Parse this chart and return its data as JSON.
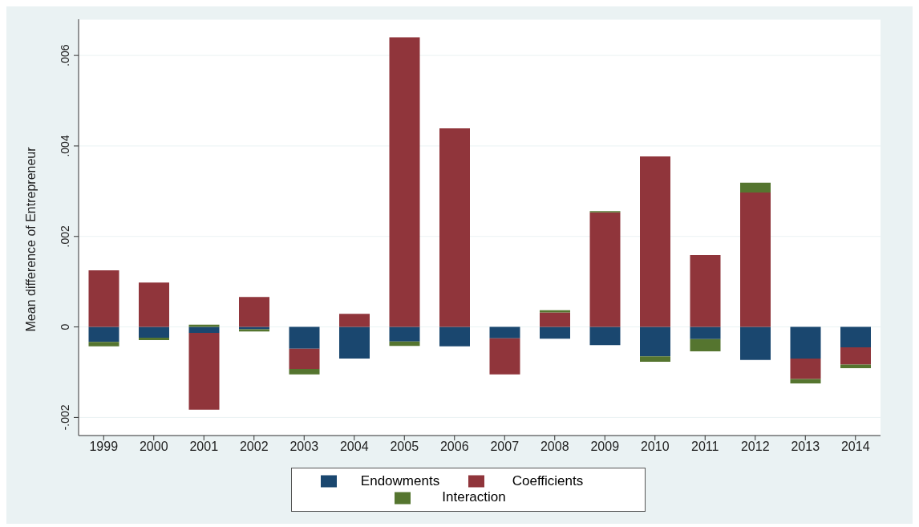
{
  "chart_data": {
    "type": "bar",
    "stacked": true,
    "ylabel": "Mean difference of Entrepreneur",
    "categories": [
      "1999",
      "2000",
      "2001",
      "2002",
      "2003",
      "2004",
      "2005",
      "2006",
      "2007",
      "2008",
      "2009",
      "2010",
      "2011",
      "2012",
      "2013",
      "2014"
    ],
    "series": [
      {
        "name": "Endowments",
        "color": "#1a476f",
        "values": [
          -0.00033,
          -0.00024,
          -0.00013,
          -5e-05,
          -0.00048,
          -0.0007,
          -0.00032,
          -0.00043,
          -0.00025,
          -0.00026,
          -0.0004,
          -0.00065,
          -0.00027,
          -0.00073,
          -0.0007,
          -0.00045
        ]
      },
      {
        "name": "Coefficients",
        "color": "#90353b",
        "values": [
          0.00125,
          0.00098,
          -0.0017,
          0.00066,
          -0.00045,
          0.00029,
          0.0064,
          0.00439,
          -0.0008,
          0.00032,
          0.00253,
          0.00377,
          0.00159,
          0.00297,
          -0.00045,
          -0.00038
        ]
      },
      {
        "name": "Interaction",
        "color": "#55752f",
        "values": [
          -0.0001,
          -5e-05,
          5e-05,
          -5e-05,
          -0.00012,
          0,
          -0.0001,
          0,
          0,
          5e-05,
          3e-05,
          -0.00012,
          -0.00027,
          0.00022,
          -0.0001,
          -8e-05
        ]
      }
    ],
    "ylim": [
      -0.0024,
      0.0068
    ],
    "yticks": [
      {
        "value": -0.002,
        "label": "-.002"
      },
      {
        "value": 0,
        "label": "0"
      },
      {
        "value": 0.002,
        "label": ".002"
      },
      {
        "value": 0.004,
        "label": ".004"
      },
      {
        "value": 0.006,
        "label": ".006"
      }
    ],
    "grid": "y",
    "legend": "bottom"
  }
}
